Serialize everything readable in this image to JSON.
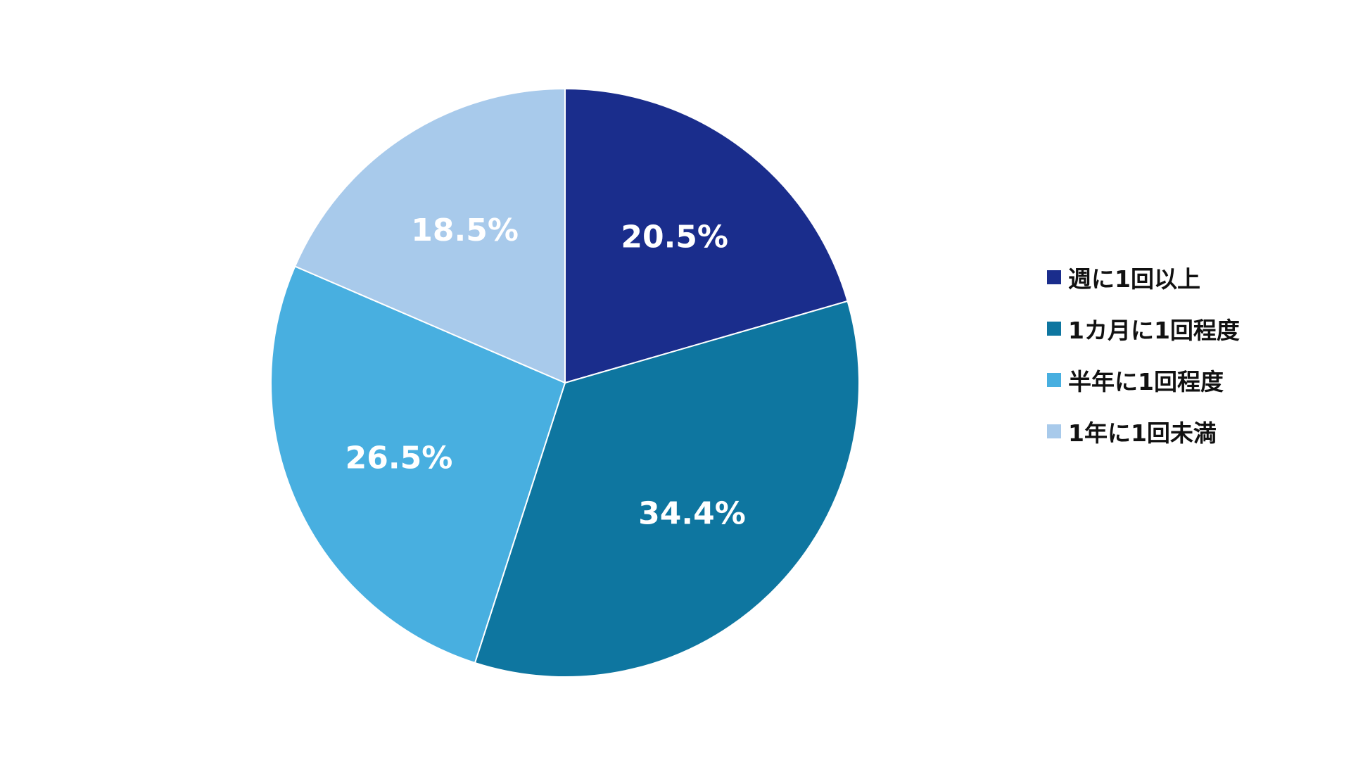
{
  "chart_data": {
    "type": "pie",
    "categories": [
      "週に1回以上",
      "1カ月に1回程度",
      "半年に1回程度",
      "1年に1回未満"
    ],
    "values": [
      20.5,
      34.4,
      26.5,
      18.5
    ],
    "value_labels": [
      "20.5%",
      "34.4%",
      "26.5%",
      "18.5%"
    ],
    "colors": [
      "#1a2d8c",
      "#0e76a0",
      "#48afe0",
      "#a8caeb"
    ],
    "start_angle_deg": 0,
    "direction": "clockwise",
    "legend_position": "right",
    "title": ""
  }
}
